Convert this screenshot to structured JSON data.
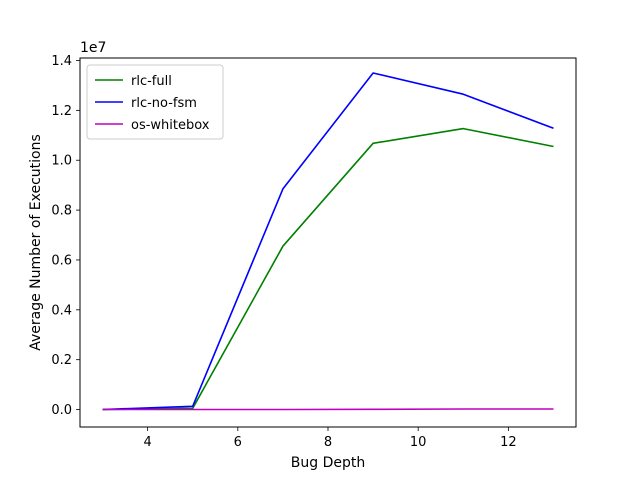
{
  "chart_data": {
    "type": "line",
    "xlabel": "Bug Depth",
    "ylabel": "Average Number of Executions",
    "y_scale_label": "1e7",
    "xlim": [
      2.5,
      13.5
    ],
    "ylim": [
      -0.07,
      1.41
    ],
    "x_ticks": [
      4,
      6,
      8,
      10,
      12
    ],
    "x_tick_labels": [
      "4",
      "6",
      "8",
      "10",
      "12"
    ],
    "y_ticks": [
      0.0,
      0.2,
      0.4,
      0.6,
      0.8,
      1.0,
      1.2,
      1.4
    ],
    "y_tick_labels": [
      "0.0",
      "0.2",
      "0.4",
      "0.6",
      "0.8",
      "1.0",
      "1.2",
      "1.4"
    ],
    "y_multiplier": 10000000,
    "grid": false,
    "legend_position": "top-left",
    "x": [
      3,
      5,
      7,
      9,
      11,
      13
    ],
    "series": [
      {
        "name": "rlc-full",
        "color": "#008000",
        "values": [
          0.0,
          0.005,
          0.655,
          1.068,
          1.127,
          1.055
        ]
      },
      {
        "name": "rlc-no-fsm",
        "color": "#0000ff",
        "values": [
          0.0,
          0.013,
          0.885,
          1.35,
          1.265,
          1.128
        ]
      },
      {
        "name": "os-whitebox",
        "color": "#bf00bf",
        "values": [
          0.0,
          0.0,
          0.0,
          0.001,
          0.002,
          0.002
        ]
      }
    ]
  }
}
